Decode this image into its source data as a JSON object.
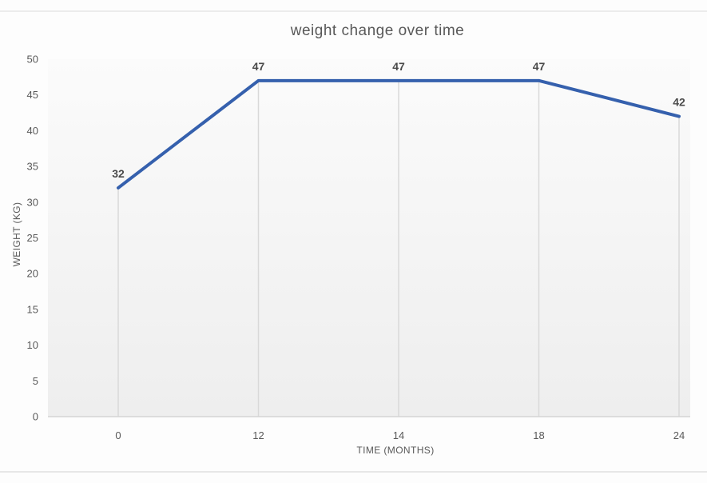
{
  "chart_data": {
    "type": "line",
    "title": "weight change over time",
    "xlabel": "TIME (MONTHS)",
    "ylabel": "WEIGHT (KG)",
    "categories": [
      "0",
      "12",
      "14",
      "18",
      "24"
    ],
    "values": [
      32,
      47,
      47,
      47,
      42
    ],
    "data_labels": [
      "32",
      "47",
      "47",
      "47",
      "42"
    ],
    "yticks": [
      0,
      5,
      10,
      15,
      20,
      25,
      30,
      35,
      40,
      45,
      50
    ],
    "ylim": [
      0,
      50
    ],
    "grid": "vertical-drop-lines-only",
    "legend": "none",
    "markers": "none",
    "line_color": "#3560ad",
    "gridline_color": "#d9d9d9",
    "axis_line_color": "#d4d4d4",
    "text_color": "#595959",
    "plot_fill_top": "#fbfbfb",
    "plot_fill_bottom": "#eeeeee"
  }
}
